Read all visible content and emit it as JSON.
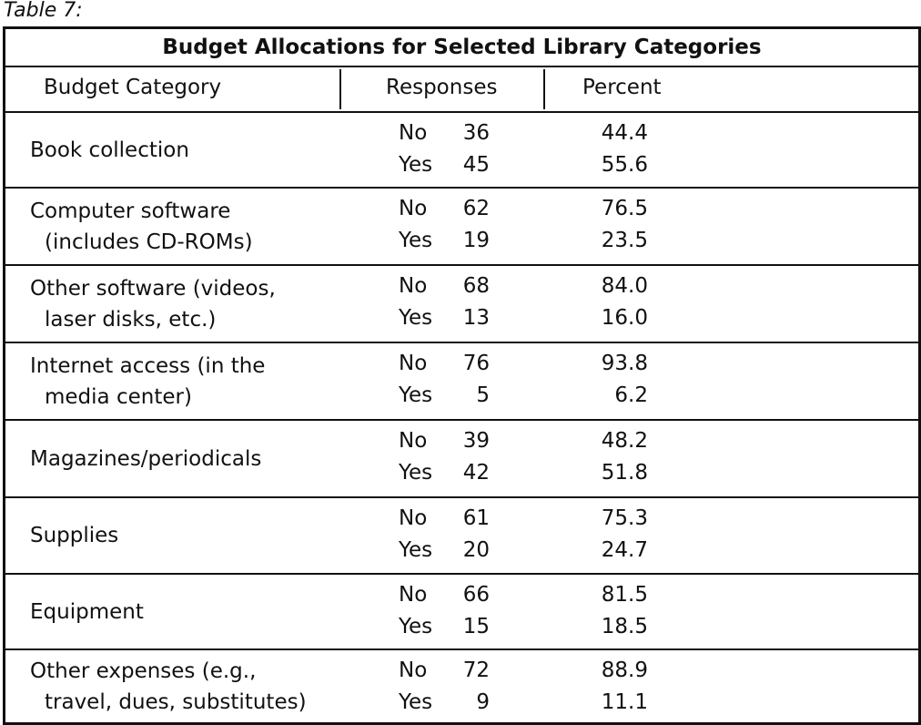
{
  "caption": "Table 7:",
  "title": "Budget Allocations for Selected Library Categories",
  "columns": {
    "category": "Budget Category",
    "responses": "Responses",
    "percent": "Percent"
  },
  "rows": [
    {
      "category_line1": "Book collection",
      "category_line2": "",
      "no_label": "No",
      "no_count": "36",
      "no_percent": "44.4",
      "yes_label": "Yes",
      "yes_count": "45",
      "yes_percent": "55.6"
    },
    {
      "category_line1": "Computer software",
      "category_line2": "(includes CD-ROMs)",
      "no_label": "No",
      "no_count": "62",
      "no_percent": "76.5",
      "yes_label": "Yes",
      "yes_count": "19",
      "yes_percent": "23.5"
    },
    {
      "category_line1": "Other software (videos,",
      "category_line2": "laser disks, etc.)",
      "no_label": "No",
      "no_count": "68",
      "no_percent": "84.0",
      "yes_label": "Yes",
      "yes_count": "13",
      "yes_percent": "16.0"
    },
    {
      "category_line1": "Internet access (in the",
      "category_line2": "media center)",
      "no_label": "No",
      "no_count": "76",
      "no_percent": "93.8",
      "yes_label": "Yes",
      "yes_count": "5",
      "yes_percent": "6.2"
    },
    {
      "category_line1": "Magazines/periodicals",
      "category_line2": "",
      "no_label": "No",
      "no_count": "39",
      "no_percent": "48.2",
      "yes_label": "Yes",
      "yes_count": "42",
      "yes_percent": "51.8"
    },
    {
      "category_line1": "Supplies",
      "category_line2": "",
      "no_label": "No",
      "no_count": "61",
      "no_percent": "75.3",
      "yes_label": "Yes",
      "yes_count": "20",
      "yes_percent": "24.7"
    },
    {
      "category_line1": "Equipment",
      "category_line2": "",
      "no_label": "No",
      "no_count": "66",
      "no_percent": "81.5",
      "yes_label": "Yes",
      "yes_count": "15",
      "yes_percent": "18.5"
    },
    {
      "category_line1": "Other expenses (e.g.,",
      "category_line2": "travel, dues, substitutes)",
      "no_label": "No",
      "no_count": "72",
      "no_percent": "88.9",
      "yes_label": "Yes",
      "yes_count": "9",
      "yes_percent": "11.1"
    }
  ]
}
